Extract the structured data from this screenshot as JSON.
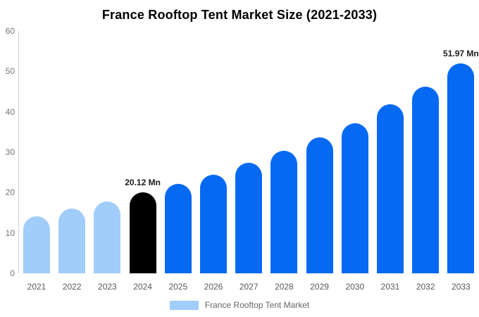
{
  "title": "France Rooftop Tent Market Size (2021-2033)",
  "chart_data": {
    "type": "bar",
    "categories": [
      "2021",
      "2022",
      "2023",
      "2024",
      "2025",
      "2026",
      "2027",
      "2028",
      "2029",
      "2030",
      "2031",
      "2032",
      "2033"
    ],
    "values": [
      14.2,
      16.0,
      17.8,
      20.12,
      22.2,
      24.5,
      27.3,
      30.4,
      33.7,
      37.2,
      41.8,
      46.3,
      51.97
    ],
    "unit": "Mn",
    "title": "France Rooftop Tent Market Size (2021-2033)",
    "xlabel": "",
    "ylabel": "",
    "ylim": [
      0,
      60
    ],
    "yticks": [
      0,
      10,
      20,
      30,
      40,
      50,
      60
    ],
    "grid": false,
    "annotations": [
      {
        "category": "2024",
        "text": "20.12 Mn"
      },
      {
        "category": "2033",
        "text": "51.97 Mn"
      }
    ],
    "colors": {
      "historical": "#a1cdfa",
      "base_year": "#000000",
      "forecast": "#0569f1"
    },
    "color_roles": [
      "historical",
      "historical",
      "historical",
      "base_year",
      "forecast",
      "forecast",
      "forecast",
      "forecast",
      "forecast",
      "forecast",
      "forecast",
      "forecast",
      "forecast"
    ],
    "legend": {
      "label": "France Rooftop Tent Market",
      "swatch_color": "#a1cdfa",
      "position": "bottom"
    }
  }
}
